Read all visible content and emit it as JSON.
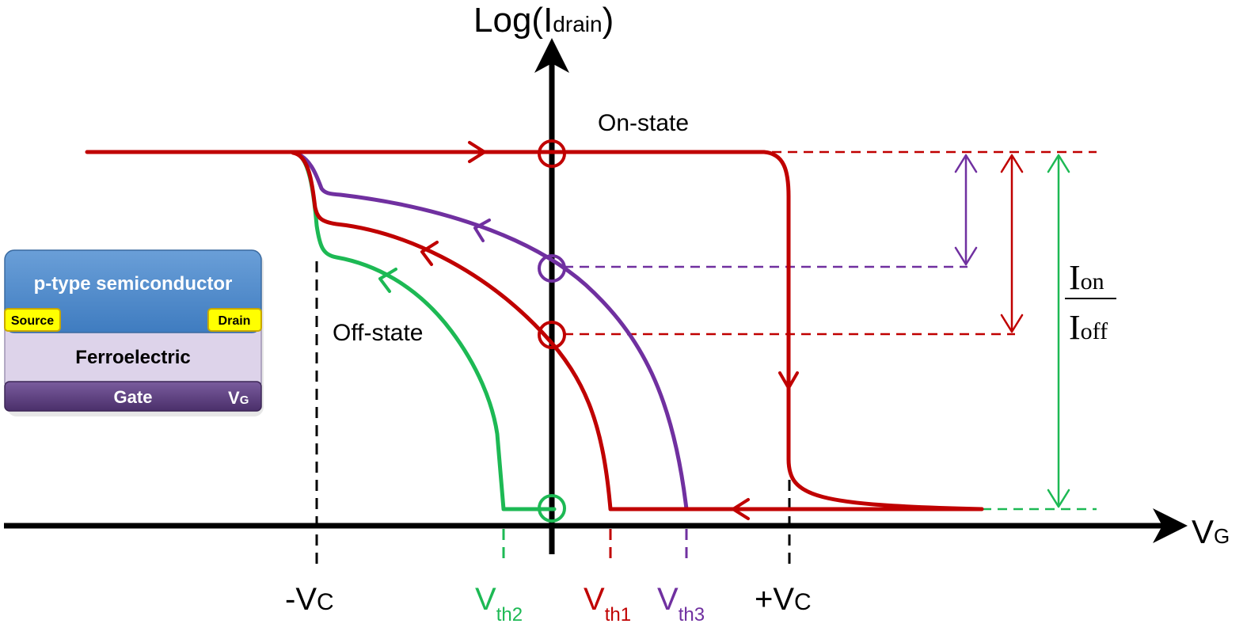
{
  "colors": {
    "axis": "#000000",
    "red": "#c00000",
    "purple": "#7030a0",
    "green": "#1db954",
    "semiconductor": "#4a86c8",
    "electrode": "#ffff00",
    "ferroelectric": "#ddd3ea",
    "gate": "#5b3f7d"
  },
  "axes": {
    "y_label_main": "Log(I",
    "y_label_sub": "drain",
    "y_label_close": ")",
    "x_label_main": "V",
    "x_label_sub": "G"
  },
  "labels": {
    "on_state": "On-state",
    "off_state": "Off-state"
  },
  "ticks": {
    "neg_vc_main": "-V",
    "neg_vc_sub": "C",
    "pos_vc_main": "+V",
    "pos_vc_sub": "C",
    "vth2_main": "V",
    "vth2_sub": "th2",
    "vth1_main": "V",
    "vth1_sub": "th1",
    "vth3_main": "V",
    "vth3_sub": "th3"
  },
  "ratio": {
    "numerator_main": "I",
    "numerator_sub": "on",
    "denominator_main": "I",
    "denominator_sub": "off"
  },
  "device": {
    "semiconductor": "p-type semiconductor",
    "source": "Source",
    "drain": "Drain",
    "ferroelectric": "Ferroelectric",
    "gate": "Gate",
    "gate_terminal_main": "V",
    "gate_terminal_sub": "G"
  }
}
